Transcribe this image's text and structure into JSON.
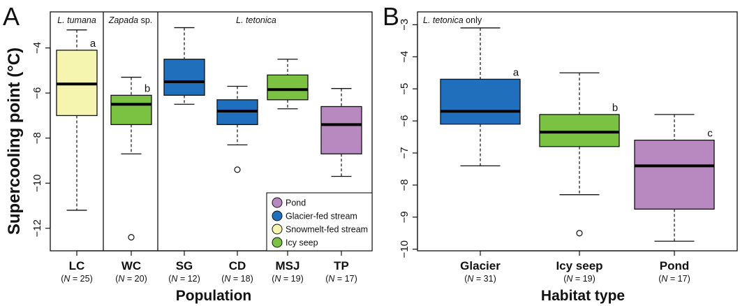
{
  "chart_data": [
    {
      "type": "box",
      "panel_label": "A",
      "xlabel": "Population",
      "ylabel": "Supercooling point (°C)",
      "ylim": [
        -13.0,
        -2.4
      ],
      "yticks": [
        -4,
        -6,
        -8,
        -10,
        -12
      ],
      "group_labels": [
        {
          "text": "L. tumana",
          "italic": true,
          "suffix": ""
        },
        {
          "text": "Zapada",
          "italic": true,
          "suffix": " sp."
        },
        {
          "text": "L. tetonica",
          "italic": true,
          "suffix": ""
        }
      ],
      "legend": {
        "position": "bottom-right",
        "entries": [
          {
            "label": "Pond",
            "color": "#b888c0"
          },
          {
            "label": "Glacier-fed stream",
            "color": "#1f6fbd"
          },
          {
            "label": "Snowmelt-fed stream",
            "color": "#f6f5b0"
          },
          {
            "label": "Icy seep",
            "color": "#7cc242"
          }
        ]
      },
      "boxes": [
        {
          "label": "LC",
          "n": "(N = 25)",
          "min": -11.2,
          "q1": -7.0,
          "median": -5.6,
          "q3": -4.1,
          "max": -3.2,
          "outliers": [],
          "color": "#f6f5b0",
          "sig": "a"
        },
        {
          "label": "WC",
          "n": "(N = 20)",
          "min": -8.7,
          "q1": -7.4,
          "median": -6.5,
          "q3": -6.1,
          "max": -5.3,
          "outliers": [
            -12.4
          ],
          "color": "#7cc242",
          "sig": "b"
        },
        {
          "label": "SG",
          "n": "(N = 12)",
          "min": -6.5,
          "q1": -6.1,
          "median": -5.5,
          "q3": -4.5,
          "max": -3.1,
          "outliers": [],
          "color": "#1f6fbd",
          "sig": ""
        },
        {
          "label": "CD",
          "n": "(N = 18)",
          "min": -8.3,
          "q1": -7.4,
          "median": -6.8,
          "q3": -6.3,
          "max": -5.7,
          "outliers": [
            -9.4
          ],
          "color": "#1f6fbd",
          "sig": ""
        },
        {
          "label": "MSJ",
          "n": "(N = 19)",
          "min": -6.7,
          "q1": -6.3,
          "median": -5.85,
          "q3": -5.2,
          "max": -4.5,
          "outliers": [],
          "color": "#7cc242",
          "sig": ""
        },
        {
          "label": "TP",
          "n": "(N = 17)",
          "min": -9.7,
          "q1": -8.7,
          "median": -7.4,
          "q3": -6.6,
          "max": -5.8,
          "outliers": [],
          "color": "#b888c0",
          "sig": ""
        }
      ]
    },
    {
      "type": "box",
      "panel_label": "B",
      "xlabel": "Habitat type",
      "ylabel": "",
      "ylim": [
        -10.05,
        -2.6
      ],
      "yticks": [
        -3,
        -4,
        -5,
        -6,
        -7,
        -8,
        -9,
        -10
      ],
      "annotation": {
        "italic": "L. tetonica",
        "rest": " only"
      },
      "boxes": [
        {
          "label": "Glacier",
          "n": "(N = 31)",
          "min": -7.4,
          "q1": -6.1,
          "median": -5.7,
          "q3": -4.7,
          "max": -3.1,
          "outliers": [],
          "color": "#1f6fbd",
          "sig": "a"
        },
        {
          "label": "Icy seep",
          "n": "(N = 19)",
          "min": -8.3,
          "q1": -6.8,
          "median": -6.35,
          "q3": -5.8,
          "max": -4.5,
          "outliers": [
            -9.5
          ],
          "color": "#7cc242",
          "sig": "b"
        },
        {
          "label": "Pond",
          "n": "(N = 17)",
          "min": -9.75,
          "q1": -8.75,
          "median": -7.4,
          "q3": -6.6,
          "max": -5.8,
          "outliers": [],
          "color": "#b888c0",
          "sig": "c"
        }
      ]
    }
  ]
}
